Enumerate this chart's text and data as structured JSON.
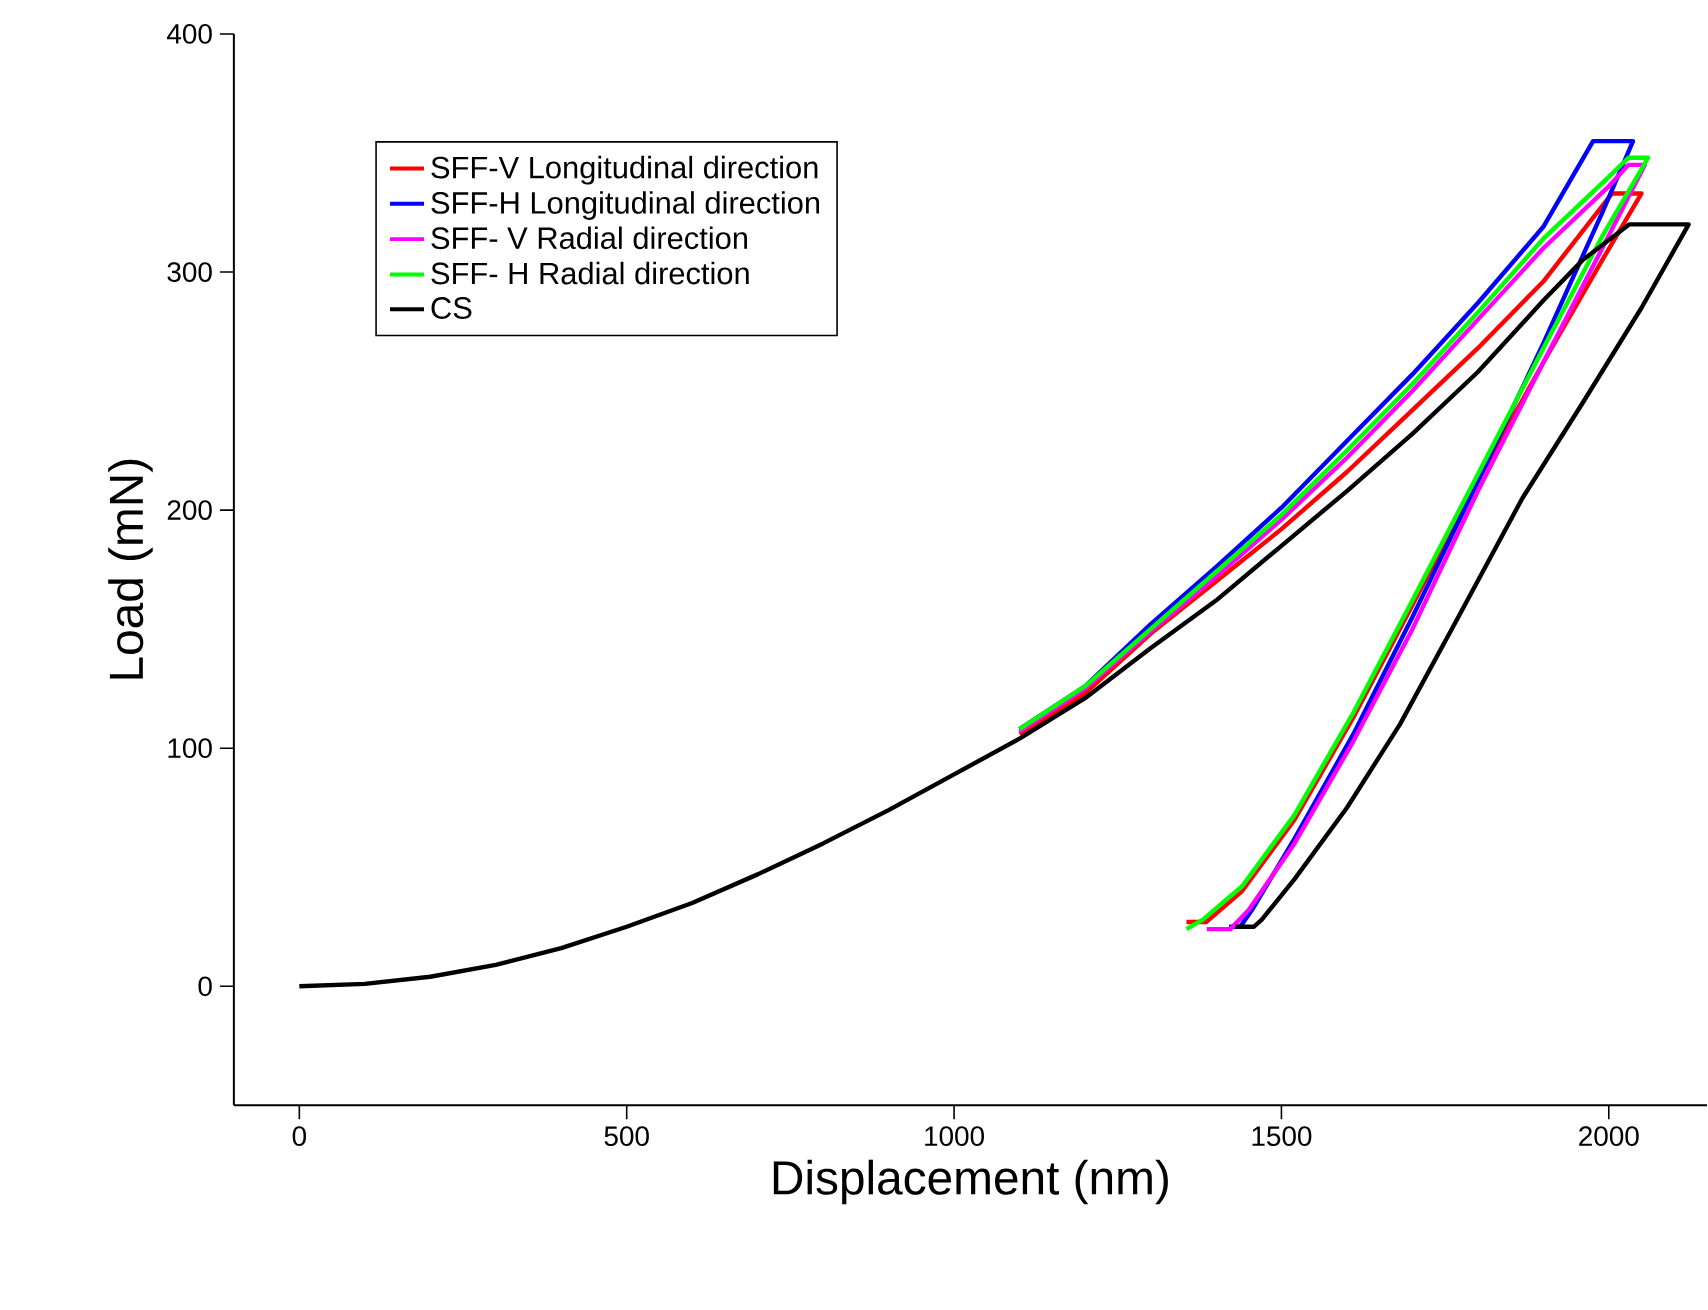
{
  "chart_data": {
    "type": "line",
    "xlabel": "Displacement (nm)",
    "ylabel": "Load (mN)",
    "xlim": [
      -100,
      2150
    ],
    "ylim": [
      -50,
      400
    ],
    "xticks": [
      0,
      500,
      1000,
      1500,
      2000
    ],
    "yticks": [
      0,
      100,
      200,
      300,
      400
    ],
    "grid": false,
    "legend": "top left",
    "marker": "none",
    "line_style": "solid",
    "series": [
      {
        "name": "SFF-V Longitudinal direction",
        "color": "#ff0000",
        "x": [
          1100,
          1200,
          1300,
          1400,
          1500,
          1600,
          1700,
          1800,
          1900,
          2005,
          2050,
          1990,
          1900,
          1781,
          1700,
          1610,
          1520,
          1440,
          1385,
          1355
        ],
        "values": [
          106,
          123,
          148,
          170,
          192,
          216,
          242,
          268,
          296,
          333,
          333,
          305,
          262,
          203,
          160,
          113,
          70,
          40,
          27,
          27
        ]
      },
      {
        "name": "SFF-H Longitudinal direction",
        "color": "#0000ff",
        "x": [
          1100,
          1200,
          1300,
          1400,
          1500,
          1600,
          1700,
          1800,
          1900,
          1976,
          2037,
          1990,
          1900,
          1800,
          1700,
          1610,
          1520,
          1455,
          1437,
          1420
        ],
        "values": [
          108,
          126,
          152,
          176,
          201,
          229,
          257,
          287,
          319,
          355,
          355,
          325,
          270,
          212,
          155,
          106,
          62,
          32,
          25,
          25
        ]
      },
      {
        "name": "SFF- V Radial direction",
        "color": "#ff00ff",
        "x": [
          1100,
          1200,
          1300,
          1400,
          1500,
          1600,
          1700,
          1800,
          1900,
          2000,
          2030,
          2055,
          1990,
          1900,
          1800,
          1700,
          1610,
          1520,
          1450,
          1422,
          1386
        ],
        "values": [
          107,
          125,
          149,
          172,
          196,
          222,
          250,
          280,
          310,
          336,
          345,
          345,
          310,
          262,
          208,
          150,
          103,
          60,
          32,
          24,
          24
        ]
      },
      {
        "name": "SFF- H Radial direction",
        "color": "#00ff00",
        "x": [
          1100,
          1200,
          1300,
          1400,
          1500,
          1600,
          1700,
          1800,
          1900,
          2000,
          2030,
          2060,
          1990,
          1900,
          1781,
          1700,
          1610,
          1520,
          1440,
          1380,
          1355
        ],
        "values": [
          108,
          126,
          150,
          174,
          198,
          225,
          253,
          283,
          314,
          340,
          348,
          348,
          315,
          268,
          205,
          162,
          115,
          72,
          42,
          28,
          24
        ]
      },
      {
        "name": "CS",
        "color": "#000000",
        "x": [
          0,
          100,
          200,
          300,
          400,
          500,
          600,
          700,
          800,
          900,
          1000,
          1100,
          1200,
          1300,
          1400,
          1500,
          1600,
          1700,
          1800,
          1900,
          1960,
          2031,
          2122,
          2050,
          1960,
          1868,
          1770,
          1681,
          1600,
          1520,
          1470,
          1458,
          1430
        ],
        "values": [
          0,
          1,
          4,
          9,
          16,
          25,
          35,
          47,
          60,
          74,
          89,
          104,
          121,
          142,
          162,
          185,
          208,
          232,
          258,
          288,
          305,
          320,
          320,
          285,
          245,
          205,
          155,
          110,
          75,
          45,
          28,
          25,
          25
        ]
      }
    ]
  }
}
